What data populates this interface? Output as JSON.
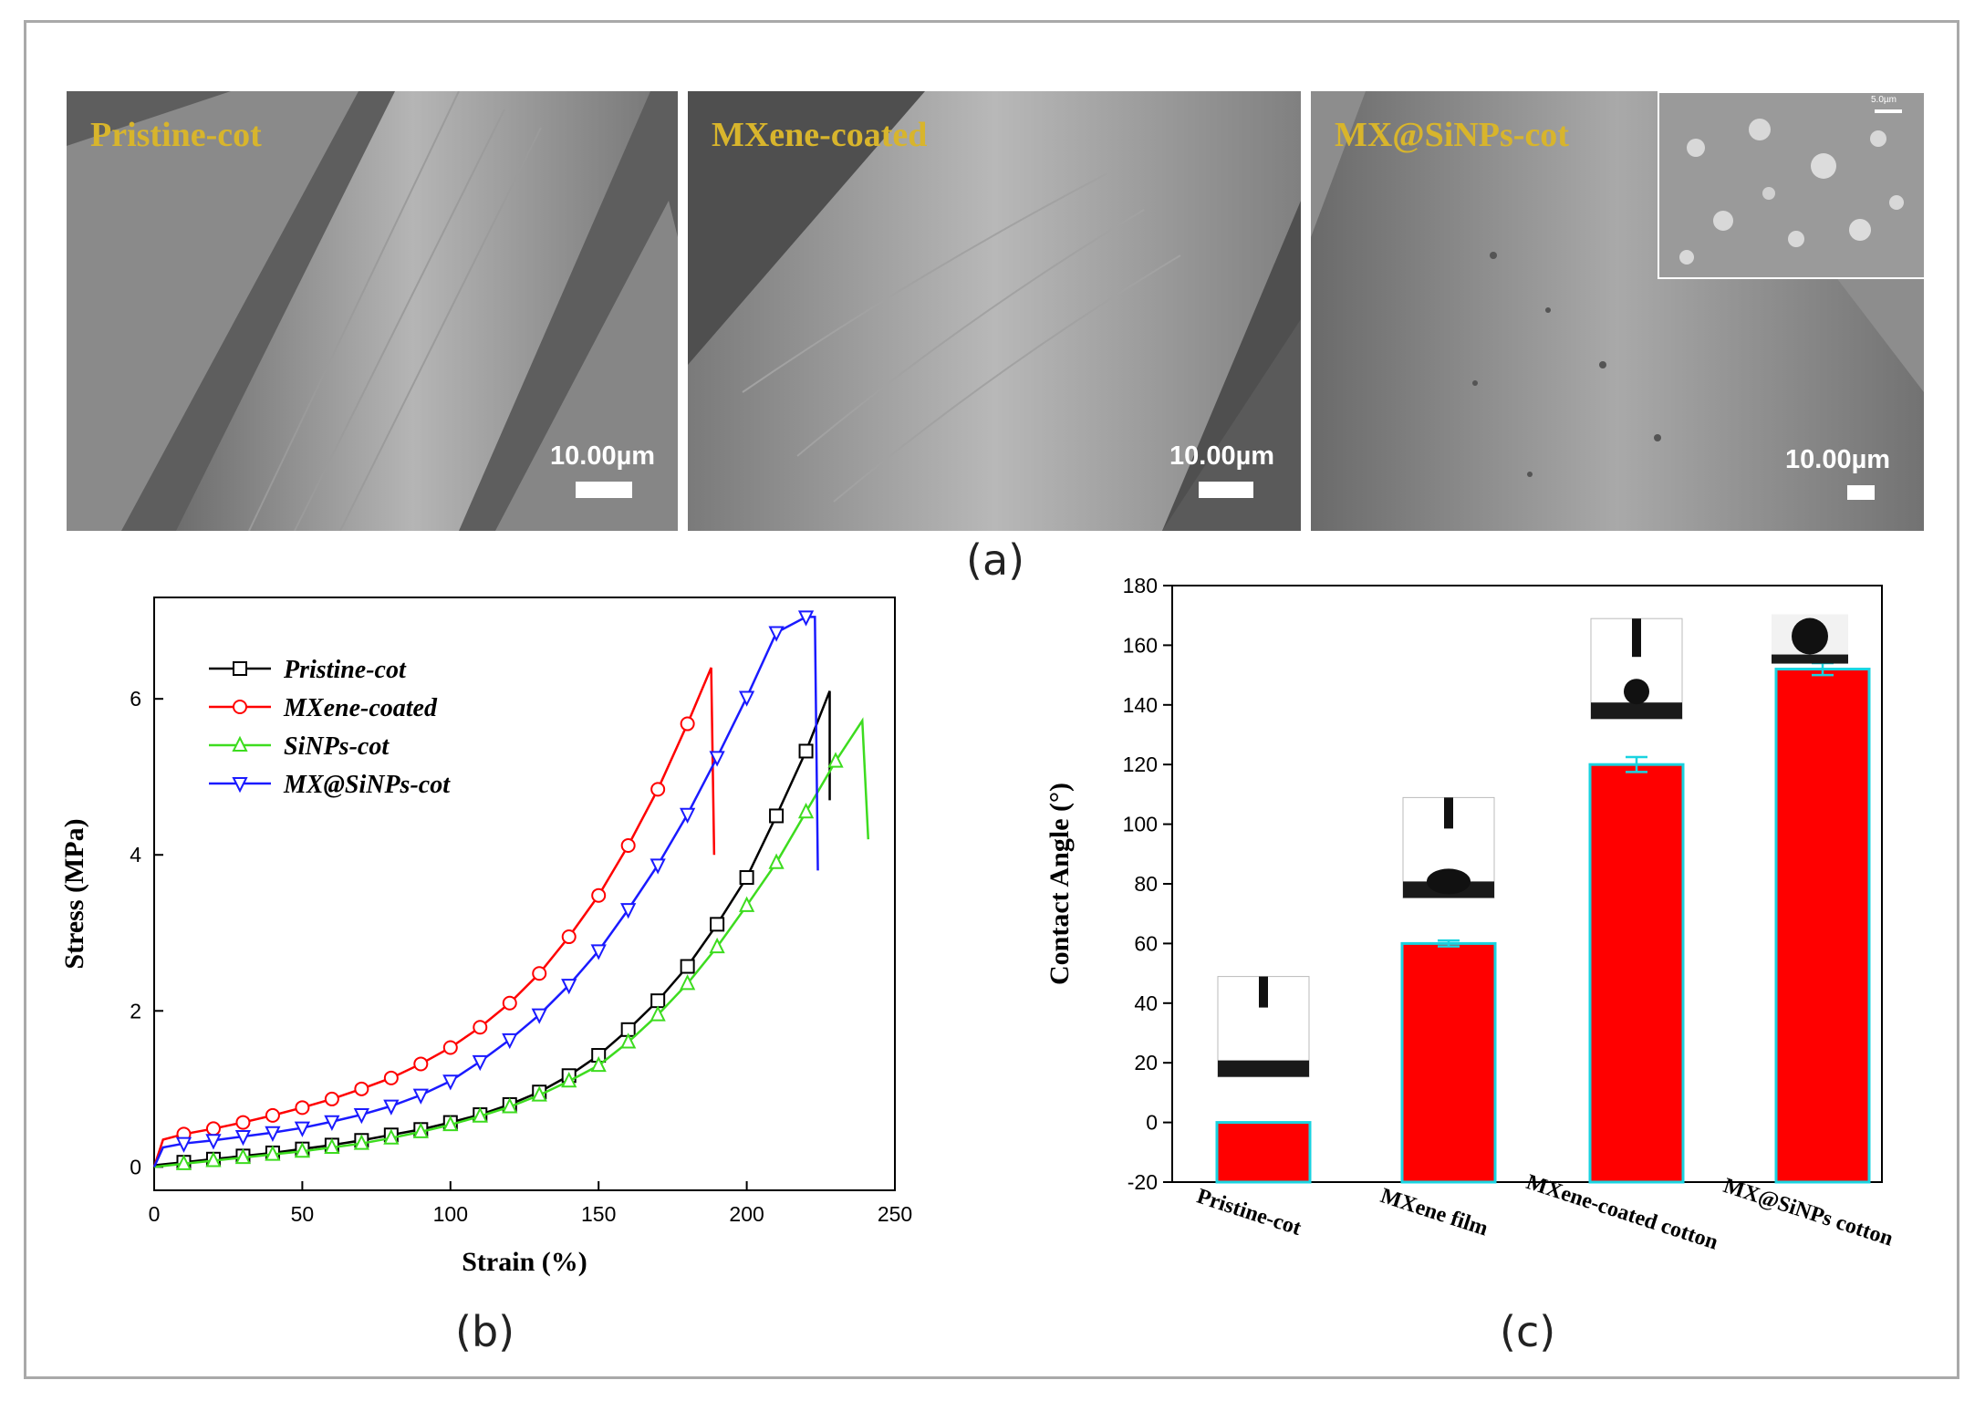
{
  "panel_labels": {
    "a": "(a)",
    "b": "(b)",
    "c": "(c)"
  },
  "sem_images": [
    {
      "label": "Pristine-cot",
      "scale": "10.00µm"
    },
    {
      "label": "MXene-coated",
      "scale": "10.00µm"
    },
    {
      "label": "MX@SiNPs-cot",
      "scale": "10.00µm",
      "inset_scale": "5.0µm"
    }
  ],
  "colors": {
    "red": "#ff0000",
    "cyan": "#19d3e0",
    "black": "#000000",
    "green": "#3ddc1f",
    "blue": "#1a1aff",
    "label_gold": "#d8b52c"
  },
  "chart_data": [
    {
      "id": "b",
      "type": "line",
      "xlabel": "Strain (%)",
      "ylabel": "Stress (MPa)",
      "xlim": [
        0,
        250
      ],
      "ylim": [
        -0.3,
        7.3
      ],
      "xticks": [
        "0",
        "50",
        "100",
        "150",
        "200",
        "250"
      ],
      "yticks": [
        "0",
        "2",
        "4",
        "6"
      ],
      "legend_position": "top-left",
      "series": [
        {
          "name": "Pristine-cot",
          "color": "#000000",
          "marker": "square",
          "x": [
            0,
            5,
            10,
            20,
            30,
            40,
            50,
            60,
            70,
            80,
            90,
            100,
            110,
            120,
            130,
            140,
            150,
            160,
            170,
            180,
            190,
            200,
            210,
            220,
            228,
            228
          ],
          "y": [
            0.02,
            0.04,
            0.06,
            0.1,
            0.14,
            0.18,
            0.23,
            0.28,
            0.34,
            0.41,
            0.48,
            0.57,
            0.67,
            0.8,
            0.96,
            1.17,
            1.43,
            1.76,
            2.13,
            2.57,
            3.11,
            3.71,
            4.5,
            5.33,
            6.1,
            4.7
          ]
        },
        {
          "name": "MXene-coated",
          "color": "#ff0000",
          "marker": "circle",
          "x": [
            0,
            3,
            10,
            20,
            30,
            40,
            50,
            60,
            70,
            80,
            90,
            100,
            110,
            120,
            130,
            140,
            150,
            160,
            170,
            180,
            188,
            189
          ],
          "y": [
            0.0,
            0.35,
            0.42,
            0.49,
            0.57,
            0.66,
            0.76,
            0.87,
            1.0,
            1.14,
            1.32,
            1.53,
            1.79,
            2.1,
            2.48,
            2.95,
            3.48,
            4.12,
            4.84,
            5.68,
            6.4,
            4.0
          ]
        },
        {
          "name": "SiNPs-cot",
          "color": "#3ddc1f",
          "marker": "triangle-up",
          "x": [
            0,
            5,
            10,
            20,
            30,
            40,
            50,
            60,
            70,
            80,
            90,
            100,
            110,
            120,
            130,
            140,
            150,
            160,
            170,
            180,
            190,
            200,
            210,
            220,
            230,
            239,
            241
          ],
          "y": [
            0.0,
            0.02,
            0.04,
            0.08,
            0.12,
            0.16,
            0.2,
            0.25,
            0.3,
            0.37,
            0.45,
            0.54,
            0.65,
            0.77,
            0.92,
            1.1,
            1.3,
            1.6,
            1.95,
            2.35,
            2.82,
            3.35,
            3.9,
            4.55,
            5.2,
            5.72,
            4.2
          ]
        },
        {
          "name": "MX@SiNPs-cot",
          "color": "#1a1aff",
          "marker": "triangle-down",
          "x": [
            0,
            3,
            10,
            20,
            30,
            40,
            50,
            60,
            70,
            80,
            90,
            100,
            110,
            120,
            130,
            140,
            150,
            160,
            170,
            180,
            190,
            200,
            210,
            220,
            223,
            224
          ],
          "y": [
            0.0,
            0.25,
            0.3,
            0.34,
            0.39,
            0.44,
            0.5,
            0.58,
            0.67,
            0.78,
            0.92,
            1.1,
            1.35,
            1.63,
            1.95,
            2.33,
            2.77,
            3.3,
            3.87,
            4.52,
            5.25,
            6.02,
            6.85,
            7.05,
            7.05,
            3.8
          ]
        }
      ]
    },
    {
      "id": "c",
      "type": "bar",
      "xlabel": "",
      "ylabel": "Contact Angle (°)",
      "ylim": [
        -20,
        180
      ],
      "yticks": [
        "-20",
        "0",
        "20",
        "40",
        "60",
        "80",
        "100",
        "120",
        "140",
        "160",
        "180"
      ],
      "categories": [
        "Pristine-cot",
        "MXene film",
        "MXene-coated cotton",
        "MX@SiNPs cotton"
      ],
      "values": [
        0,
        60,
        120,
        152
      ],
      "errors": [
        0,
        1,
        2.5,
        2
      ],
      "bar_color": "#ff0000",
      "edge_color": "#19d3e0"
    }
  ]
}
